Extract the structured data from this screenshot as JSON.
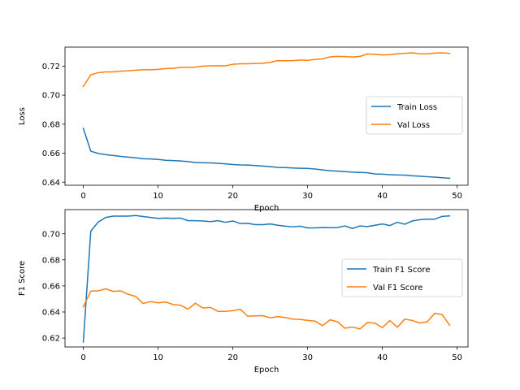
{
  "colors": {
    "train": "#1f77b4",
    "val": "#ff7f0e",
    "axis": "#000000",
    "legend_border": "#cccccc"
  },
  "chart_data": [
    {
      "type": "line",
      "title": "",
      "xlabel": "Epoch",
      "ylabel": "Loss",
      "xlim": [
        -2.45,
        51.45
      ],
      "ylim": [
        0.6379,
        0.7331
      ],
      "xticks": [
        0,
        10,
        20,
        30,
        40,
        50
      ],
      "yticks": [
        0.64,
        0.66,
        0.68,
        0.7,
        0.72
      ],
      "ytick_labels": [
        "0.64",
        "0.66",
        "0.68",
        "0.70",
        "0.72"
      ],
      "grid": false,
      "legend_position": "center-right",
      "x": [
        0,
        1,
        2,
        3,
        4,
        5,
        6,
        7,
        8,
        9,
        10,
        11,
        12,
        13,
        14,
        15,
        16,
        17,
        18,
        19,
        20,
        21,
        22,
        23,
        24,
        25,
        26,
        27,
        28,
        29,
        30,
        31,
        32,
        33,
        34,
        35,
        36,
        37,
        38,
        39,
        40,
        41,
        42,
        43,
        44,
        45,
        46,
        47,
        48,
        49
      ],
      "series": [
        {
          "name": "Train Loss",
          "color": "#1f77b4",
          "values": [
            0.6771,
            0.6614,
            0.6598,
            0.659,
            0.6584,
            0.6578,
            0.6573,
            0.6568,
            0.6562,
            0.656,
            0.6557,
            0.6551,
            0.6549,
            0.6546,
            0.6542,
            0.6536,
            0.6534,
            0.6533,
            0.653,
            0.6527,
            0.6522,
            0.6519,
            0.6518,
            0.6515,
            0.6511,
            0.6507,
            0.6502,
            0.6501,
            0.6498,
            0.6496,
            0.6495,
            0.6491,
            0.6485,
            0.6479,
            0.6476,
            0.6473,
            0.6469,
            0.6467,
            0.6465,
            0.6457,
            0.6455,
            0.6452,
            0.645,
            0.6449,
            0.6444,
            0.6441,
            0.6438,
            0.6435,
            0.6431,
            0.6427
          ]
        },
        {
          "name": "Val Loss",
          "color": "#ff7f0e",
          "values": [
            0.706,
            0.714,
            0.7155,
            0.716,
            0.716,
            0.7166,
            0.7168,
            0.7172,
            0.7175,
            0.7175,
            0.7178,
            0.7183,
            0.7185,
            0.7191,
            0.7192,
            0.7193,
            0.72,
            0.7202,
            0.7203,
            0.7202,
            0.7213,
            0.7216,
            0.7216,
            0.7218,
            0.722,
            0.7226,
            0.7238,
            0.7237,
            0.7238,
            0.7242,
            0.724,
            0.7246,
            0.725,
            0.7264,
            0.7267,
            0.7266,
            0.7263,
            0.7267,
            0.7284,
            0.7281,
            0.7277,
            0.7279,
            0.7285,
            0.7288,
            0.7292,
            0.7285,
            0.7285,
            0.729,
            0.7292,
            0.7288
          ]
        }
      ]
    },
    {
      "type": "line",
      "title": "",
      "xlabel": "Epoch",
      "ylabel": "F1 Score",
      "xlim": [
        -2.45,
        51.45
      ],
      "ylim": [
        0.6132,
        0.7185
      ],
      "xticks": [
        0,
        10,
        20,
        30,
        40,
        50
      ],
      "yticks": [
        0.62,
        0.64,
        0.66,
        0.68,
        0.7
      ],
      "ytick_labels": [
        "0.62",
        "0.64",
        "0.66",
        "0.68",
        "0.70"
      ],
      "grid": false,
      "legend_position": "center-right",
      "x": [
        0,
        1,
        2,
        3,
        4,
        5,
        6,
        7,
        8,
        9,
        10,
        11,
        12,
        13,
        14,
        15,
        16,
        17,
        18,
        19,
        20,
        21,
        22,
        23,
        24,
        25,
        26,
        27,
        28,
        29,
        30,
        31,
        32,
        33,
        34,
        35,
        36,
        37,
        38,
        39,
        40,
        41,
        42,
        43,
        44,
        45,
        46,
        47,
        48,
        49
      ],
      "series": [
        {
          "name": "Train F1 Score",
          "color": "#1f77b4",
          "values": [
            0.617,
            0.702,
            0.709,
            0.7125,
            0.7135,
            0.7135,
            0.7135,
            0.714,
            0.7132,
            0.7125,
            0.7118,
            0.712,
            0.7118,
            0.712,
            0.71,
            0.71,
            0.7098,
            0.7093,
            0.71,
            0.7088,
            0.7098,
            0.7078,
            0.708,
            0.707,
            0.707,
            0.7075,
            0.7065,
            0.7058,
            0.7053,
            0.7058,
            0.7045,
            0.7045,
            0.7048,
            0.7046,
            0.7048,
            0.706,
            0.704,
            0.706,
            0.7055,
            0.7065,
            0.7075,
            0.7063,
            0.7088,
            0.7073,
            0.7098,
            0.7108,
            0.7112,
            0.7112,
            0.7133,
            0.7137
          ]
        },
        {
          "name": "Val F1 Score",
          "color": "#ff7f0e",
          "values": [
            0.644,
            0.656,
            0.6562,
            0.6578,
            0.6558,
            0.6562,
            0.6535,
            0.652,
            0.6465,
            0.648,
            0.647,
            0.6477,
            0.6457,
            0.6452,
            0.6422,
            0.6467,
            0.643,
            0.6435,
            0.6405,
            0.6405,
            0.641,
            0.642,
            0.6368,
            0.637,
            0.6372,
            0.6355,
            0.6365,
            0.6358,
            0.6345,
            0.6343,
            0.6335,
            0.633,
            0.6295,
            0.634,
            0.6325,
            0.6275,
            0.6285,
            0.627,
            0.632,
            0.6315,
            0.628,
            0.6335,
            0.6283,
            0.6345,
            0.6335,
            0.6315,
            0.6325,
            0.639,
            0.638,
            0.6298
          ]
        }
      ]
    }
  ]
}
